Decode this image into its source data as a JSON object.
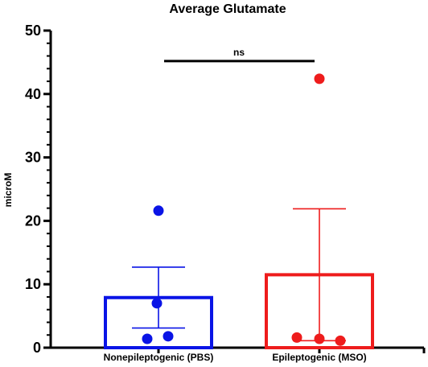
{
  "chart_data": {
    "type": "bar",
    "title": "Average Glutamate",
    "xlabel": "",
    "ylabel": "microM",
    "ylim": [
      0,
      50
    ],
    "yticks": [
      0,
      10,
      20,
      30,
      40,
      50
    ],
    "grid": false,
    "categories": [
      "Nonepileptogenic (PBS)",
      "Epileptogenic (MSO)"
    ],
    "colors": [
      "#0a14e6",
      "#ee1c1c"
    ],
    "values": [
      7.9,
      11.5
    ],
    "error": [
      4.8,
      10.4
    ],
    "points": [
      [
        21.6,
        7.0,
        1.8,
        1.4
      ],
      [
        42.4,
        1.6,
        1.4,
        1.1
      ]
    ],
    "significance": {
      "label": "ns",
      "between": [
        0,
        1
      ],
      "y": 45.2
    }
  }
}
